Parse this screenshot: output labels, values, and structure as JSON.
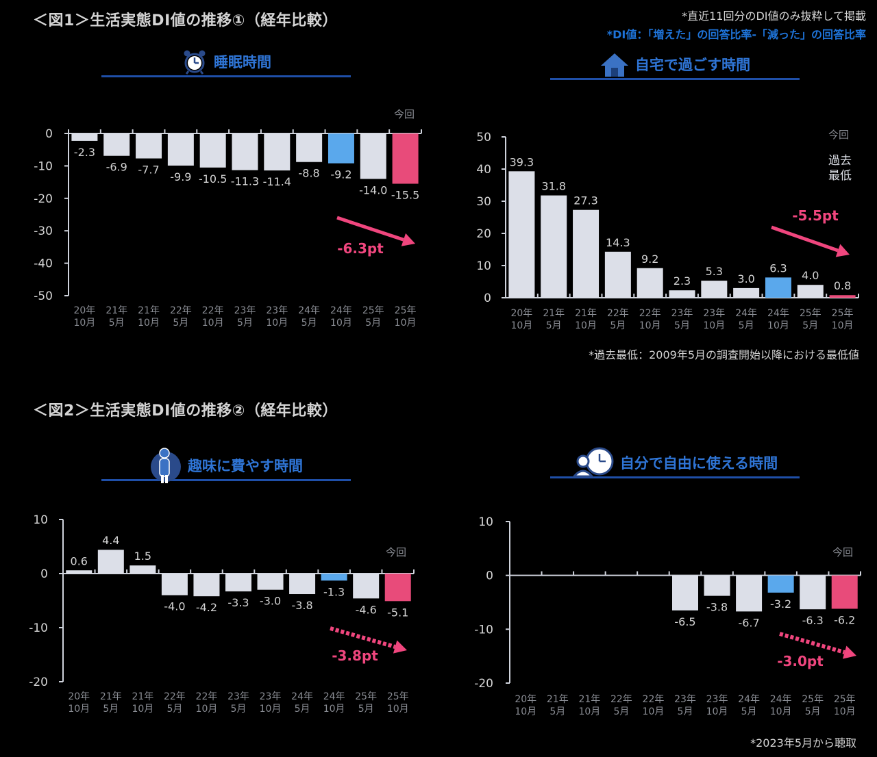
{
  "header": {
    "fig1_title": "＜図1＞生活実態DI値の推移①（経年比較）",
    "fig2_title": "＜図2＞生活実態DI値の推移②（経年比較）",
    "note_recent": "*直近11回分のDI値のみ抜粋して掲載",
    "note_di": "*DI値：「増えた」の回答比率-「減った」の回答比率"
  },
  "footnotes": {
    "record_low": "*過去最低：2009年5月の調査開始以降における最低値",
    "from_2023": "*2023年5月から聴取"
  },
  "colors": {
    "bar_default": "#dcdfe8",
    "bar_highlight": "#5aa8ec",
    "bar_current": "#e84b7a",
    "accent_pink": "#f0467e",
    "heading_blue": "#2f75d6",
    "underline_blue": "#1f4fa8"
  },
  "chart_data": [
    {
      "id": "sleep",
      "type": "bar",
      "title": "睡眠時間",
      "icon": "alarm-clock-icon",
      "categories": [
        "20年\n10月",
        "21年\n5月",
        "21年\n10月",
        "22年\n5月",
        "22年\n10月",
        "23年\n5月",
        "23年\n10月",
        "24年\n5月",
        "24年\n10月",
        "25年\n5月",
        "25年\n10月"
      ],
      "values": [
        -2.3,
        -6.9,
        -7.7,
        -9.9,
        -10.5,
        -11.3,
        -11.4,
        -8.8,
        -9.2,
        -14.0,
        -15.5
      ],
      "value_labels": [
        "-2.3",
        "-6.9",
        "-7.7",
        "-9.9",
        "-10.5",
        "-11.3",
        "-11.4",
        "-8.8",
        "-9.2",
        "-14.0",
        "-15.5"
      ],
      "highlight_index": 8,
      "current_index": 10,
      "current_label": "今回",
      "yticks": [
        0,
        -10,
        -20,
        -30,
        -40,
        -50
      ],
      "ylim": [
        -50,
        0
      ],
      "change_label": "-6.3pt",
      "arrow_style": "solid"
    },
    {
      "id": "home",
      "type": "bar",
      "title": "自宅で過ごす時間",
      "icon": "house-icon",
      "categories": [
        "20年\n10月",
        "21年\n5月",
        "21年\n10月",
        "22年\n5月",
        "22年\n10月",
        "23年\n5月",
        "23年\n10月",
        "24年\n5月",
        "24年\n10月",
        "25年\n5月",
        "25年\n10月"
      ],
      "values": [
        39.3,
        31.8,
        27.3,
        14.3,
        9.2,
        2.3,
        5.3,
        3.0,
        6.3,
        4.0,
        0.8
      ],
      "value_labels": [
        "39.3",
        "31.8",
        "27.3",
        "14.3",
        "9.2",
        "2.3",
        "5.3",
        "3.0",
        "6.3",
        "4.0",
        "0.8"
      ],
      "highlight_index": 8,
      "current_index": 10,
      "current_label": "今回",
      "record_low_label": "過去\n最低",
      "yticks": [
        50,
        40,
        30,
        20,
        10,
        0
      ],
      "ylim": [
        0,
        50
      ],
      "change_label": "-5.5pt",
      "arrow_style": "solid"
    },
    {
      "id": "hobby",
      "type": "bar",
      "title": "趣味に費やす時間",
      "icon": "person-icon",
      "categories": [
        "20年\n10月",
        "21年\n5月",
        "21年\n10月",
        "22年\n5月",
        "22年\n10月",
        "23年\n5月",
        "23年\n10月",
        "24年\n5月",
        "24年\n10月",
        "25年\n5月",
        "25年\n10月"
      ],
      "values": [
        0.6,
        4.4,
        1.5,
        -4.0,
        -4.2,
        -3.3,
        -3.0,
        -3.8,
        -1.3,
        -4.6,
        -5.1
      ],
      "value_labels": [
        "0.6",
        "4.4",
        "1.5",
        "-4.0",
        "-4.2",
        "-3.3",
        "-3.0",
        "-3.8",
        "-1.3",
        "-4.6",
        "-5.1"
      ],
      "highlight_index": 8,
      "current_index": 10,
      "current_label": "今回",
      "yticks": [
        10,
        0,
        -10,
        -20
      ],
      "ylim": [
        -20,
        10
      ],
      "change_label": "-3.8pt",
      "arrow_style": "dotted"
    },
    {
      "id": "free",
      "type": "bar",
      "title": "自分で自由に使える時間",
      "icon": "person-clock-icon",
      "categories": [
        "20年\n10月",
        "21年\n5月",
        "21年\n10月",
        "22年\n5月",
        "22年\n10月",
        "23年\n5月",
        "23年\n10月",
        "24年\n5月",
        "24年\n10月",
        "25年\n5月",
        "25年\n10月"
      ],
      "values": [
        null,
        null,
        null,
        null,
        null,
        -6.5,
        -3.8,
        -6.7,
        -3.2,
        -6.3,
        -6.2
      ],
      "value_labels": [
        "",
        "",
        "",
        "",
        "",
        "-6.5",
        "-3.8",
        "-6.7",
        "-3.2",
        "-6.3",
        "-6.2"
      ],
      "highlight_index": 8,
      "current_index": 10,
      "current_label": "今回",
      "yticks": [
        10,
        0,
        -10,
        -20
      ],
      "ylim": [
        -20,
        10
      ],
      "change_label": "-3.0pt",
      "arrow_style": "dotted"
    }
  ]
}
